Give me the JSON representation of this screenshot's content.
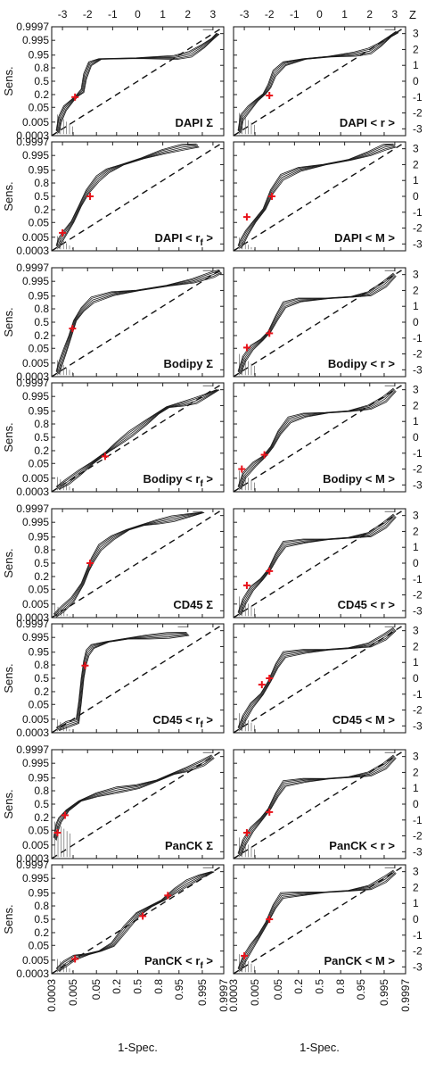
{
  "figure": {
    "z_label": "Z",
    "z_ticks": [
      "-3",
      "-2",
      "-1",
      "0",
      "1",
      "2",
      "3"
    ],
    "sens_label": "Sens.",
    "spec_label": "1-Spec.",
    "prob_ticks": [
      "0.0003",
      "0.005",
      "0.05",
      "0.2",
      "0.5",
      "0.8",
      "0.95",
      "0.995",
      "0.9997"
    ]
  },
  "chart_data": [
    {
      "type": "line",
      "marker": "DAPI",
      "stat": "Σ",
      "label_main": "DAPI ",
      "label_sub": "",
      "label_end": "Σ",
      "label_open": "",
      "xlim": [
        -3.43,
        3.43
      ],
      "ylim": [
        -3.43,
        3.43
      ],
      "scale": "probit",
      "reference": "dashed diagonal",
      "series": {
        "x": [
          -3.2,
          -3.1,
          -2.9,
          -2.6,
          -2.4,
          -2.2,
          -2.1,
          -1.9,
          -1.5,
          0,
          1.5,
          2.1,
          2.6,
          3.0,
          3.2
        ],
        "y": [
          -3.2,
          -2.4,
          -1.7,
          -1.2,
          -0.9,
          -0.6,
          0.3,
          1.1,
          1.4,
          1.45,
          1.5,
          1.7,
          2.2,
          2.7,
          3.0
        ]
      },
      "operating_points": [
        {
          "x": -2.5,
          "y": -1.0
        }
      ]
    },
    {
      "type": "line",
      "marker": "DAPI",
      "stat": "< r >",
      "label_main": "DAPI ",
      "label_sub": "",
      "label_end": "< r >",
      "label_open": "",
      "xlim": [
        -3.43,
        3.43
      ],
      "ylim": [
        -3.43,
        3.43
      ],
      "scale": "probit",
      "reference": "dashed diagonal",
      "series": {
        "x": [
          -3.2,
          -3.1,
          -2.8,
          -2.5,
          -2.2,
          -2.0,
          -1.8,
          -1.4,
          -0.6,
          0.4,
          1.4,
          2.0,
          2.4,
          2.8,
          3.1
        ],
        "y": [
          -3.2,
          -2.3,
          -1.7,
          -1.2,
          -0.8,
          -0.3,
          0.5,
          1.1,
          1.4,
          1.55,
          1.7,
          1.9,
          2.3,
          2.8,
          3.1
        ]
      },
      "operating_points": [
        {
          "x": -2.0,
          "y": -0.9
        }
      ]
    },
    {
      "type": "line",
      "marker": "DAPI",
      "stat": "< r_f >",
      "label_main": "DAPI < r",
      "label_sub": "f",
      "label_end": " >",
      "label_open": "",
      "xlim": [
        -3.43,
        3.43
      ],
      "ylim": [
        -3.43,
        3.43
      ],
      "scale": "probit",
      "reference": "dashed diagonal",
      "series": {
        "x": [
          -3.2,
          -3.1,
          -2.9,
          -2.6,
          -2.3,
          -2.0,
          -1.6,
          -1.2,
          -0.6,
          0.2,
          1.0,
          1.8,
          2.4
        ],
        "y": [
          -3.2,
          -2.8,
          -2.3,
          -1.6,
          -0.6,
          0.3,
          1.1,
          1.6,
          2.0,
          2.4,
          2.8,
          3.1,
          3.2
        ]
      },
      "operating_points": [
        {
          "x": -1.9,
          "y": 0.0
        },
        {
          "x": -3.0,
          "y": -2.3
        }
      ]
    },
    {
      "type": "line",
      "marker": "DAPI",
      "stat": "< M >",
      "label_main": "DAPI ",
      "label_sub": "",
      "label_end": "< M >",
      "label_open": "",
      "xlim": [
        -3.43,
        3.43
      ],
      "ylim": [
        -3.43,
        3.43
      ],
      "scale": "probit",
      "reference": "dashed diagonal",
      "series": {
        "x": [
          -3.2,
          -3.1,
          -2.9,
          -2.6,
          -2.2,
          -1.9,
          -1.5,
          -0.8,
          0.2,
          1.2,
          2.0,
          2.6,
          3.0
        ],
        "y": [
          -3.2,
          -2.9,
          -2.3,
          -1.6,
          -0.8,
          0.3,
          1.2,
          1.7,
          2.0,
          2.3,
          2.7,
          3.1,
          3.2
        ]
      },
      "operating_points": [
        {
          "x": -1.9,
          "y": 0.0
        },
        {
          "x": -2.9,
          "y": -1.3
        }
      ]
    },
    {
      "type": "line",
      "marker": "Bodipy",
      "stat": "Σ",
      "label_main": "Bodipy ",
      "label_sub": "",
      "label_end": "Σ",
      "label_open": "",
      "xlim": [
        -3.43,
        3.43
      ],
      "ylim": [
        -3.43,
        3.43
      ],
      "scale": "probit",
      "reference": "dashed diagonal",
      "series": {
        "x": [
          -3.2,
          -3.1,
          -2.9,
          -2.7,
          -2.5,
          -2.2,
          -1.8,
          -1.0,
          0.0,
          1.2,
          2.2,
          3.0,
          3.3
        ],
        "y": [
          -3.2,
          -2.7,
          -1.8,
          -0.9,
          0.1,
          0.8,
          1.4,
          1.8,
          2.0,
          2.3,
          2.6,
          3.0,
          3.2
        ]
      },
      "operating_points": [
        {
          "x": -2.6,
          "y": -0.4
        }
      ]
    },
    {
      "type": "line",
      "marker": "Bodipy",
      "stat": "< r >",
      "label_main": "Bodipy ",
      "label_sub": "",
      "label_end": "< r >",
      "label_open": "",
      "xlim": [
        -3.43,
        3.43
      ],
      "ylim": [
        -3.43,
        3.43
      ],
      "scale": "probit",
      "reference": "dashed diagonal",
      "series": {
        "x": [
          -3.2,
          -3.0,
          -2.7,
          -2.3,
          -2.0,
          -1.7,
          -1.4,
          -0.8,
          0.3,
          1.3,
          2.0,
          2.6,
          3.0
        ],
        "y": [
          -3.2,
          -2.3,
          -1.6,
          -1.1,
          -0.6,
          0.3,
          1.1,
          1.4,
          1.5,
          1.6,
          1.8,
          2.4,
          3.0
        ]
      },
      "operating_points": [
        {
          "x": -2.0,
          "y": -0.7
        },
        {
          "x": -2.9,
          "y": -1.6
        }
      ]
    },
    {
      "type": "line",
      "marker": "Bodipy",
      "stat": "< r_f >",
      "label_main": "Bodipy < r",
      "label_sub": "f",
      "label_end": " >",
      "label_open": "",
      "xlim": [
        -3.43,
        3.43
      ],
      "ylim": [
        -3.43,
        3.43
      ],
      "scale": "probit",
      "reference": "dashed diagonal",
      "series": {
        "x": [
          -3.2,
          -2.8,
          -2.3,
          -1.8,
          -1.2,
          -0.8,
          -0.3,
          0.3,
          0.8,
          1.2,
          1.8,
          2.3,
          2.7,
          3.2
        ],
        "y": [
          -3.2,
          -2.8,
          -2.2,
          -1.6,
          -0.9,
          -0.4,
          0.2,
          0.9,
          1.5,
          1.9,
          2.1,
          2.3,
          2.6,
          3.0
        ]
      },
      "operating_points": [
        {
          "x": -1.3,
          "y": -1.2
        }
      ]
    },
    {
      "type": "line",
      "marker": "Bodipy",
      "stat": "< M >",
      "label_main": "Bodipy ",
      "label_sub": "",
      "label_end": "< M >",
      "label_open": "",
      "xlim": [
        -3.43,
        3.43
      ],
      "ylim": [
        -3.43,
        3.43
      ],
      "scale": "probit",
      "reference": "dashed diagonal",
      "series": {
        "x": [
          -3.2,
          -3.0,
          -2.6,
          -2.2,
          -1.9,
          -1.6,
          -1.2,
          -0.6,
          0.3,
          1.2,
          2.0,
          2.6,
          3.0
        ],
        "y": [
          -3.2,
          -2.4,
          -1.7,
          -1.2,
          -0.6,
          0.3,
          1.1,
          1.4,
          1.55,
          1.65,
          1.9,
          2.4,
          3.0
        ]
      },
      "operating_points": [
        {
          "x": -2.2,
          "y": -1.1
        },
        {
          "x": -3.1,
          "y": -2.0
        }
      ]
    },
    {
      "type": "line",
      "marker": "CD45",
      "stat": "Σ",
      "label_main": "CD45 ",
      "label_sub": "",
      "label_end": "Σ",
      "label_open": "",
      "xlim": [
        -3.43,
        3.43
      ],
      "ylim": [
        -3.43,
        3.43
      ],
      "scale": "probit",
      "reference": "dashed diagonal",
      "series": {
        "x": [
          -3.3,
          -3.0,
          -2.6,
          -2.2,
          -2.0,
          -1.8,
          -1.5,
          -1.0,
          -0.4,
          0.2,
          0.8,
          1.4,
          2.0,
          2.6
        ],
        "y": [
          -3.3,
          -2.9,
          -2.3,
          -1.3,
          -0.5,
          0.2,
          1.0,
          1.6,
          2.1,
          2.4,
          2.6,
          2.8,
          3.0,
          3.2
        ]
      },
      "operating_points": [
        {
          "x": -1.9,
          "y": 0.0
        }
      ]
    },
    {
      "type": "line",
      "marker": "CD45",
      "stat": "< r >",
      "label_main": "CD45 ",
      "label_sub": "",
      "label_end": "< r >",
      "label_open": "",
      "xlim": [
        -3.43,
        3.43
      ],
      "ylim": [
        -3.43,
        3.43
      ],
      "scale": "probit",
      "reference": "dashed diagonal",
      "series": {
        "x": [
          -3.2,
          -3.0,
          -2.7,
          -2.3,
          -2.0,
          -1.7,
          -1.4,
          -0.6,
          0.3,
          1.2,
          2.0,
          2.6,
          3.0
        ],
        "y": [
          -3.2,
          -2.4,
          -1.6,
          -1.0,
          -0.4,
          0.5,
          1.2,
          1.4,
          1.5,
          1.6,
          1.8,
          2.4,
          3.0
        ]
      },
      "operating_points": [
        {
          "x": -2.0,
          "y": -0.5
        },
        {
          "x": -2.9,
          "y": -1.4
        }
      ]
    },
    {
      "type": "line",
      "marker": "CD45",
      "stat": "< r_f >",
      "label_main": "CD45 < r",
      "label_sub": "f",
      "label_end": " >",
      "label_open": "",
      "xlim": [
        -3.43,
        3.43
      ],
      "ylim": [
        -3.43,
        3.43
      ],
      "scale": "probit",
      "reference": "dashed diagonal",
      "series": {
        "x": [
          -3.2,
          -2.8,
          -2.4,
          -2.3,
          -2.2,
          -2.1,
          -2.0,
          -1.8,
          -1.2,
          -0.4,
          0.4,
          1.2,
          2.0
        ],
        "y": [
          -3.2,
          -2.9,
          -2.7,
          -1.5,
          0.0,
          1.0,
          1.6,
          2.0,
          2.3,
          2.5,
          2.6,
          2.7,
          2.8
        ]
      },
      "operating_points": [
        {
          "x": -2.1,
          "y": 0.8
        }
      ]
    },
    {
      "type": "line",
      "marker": "CD45",
      "stat": "< M >",
      "label_main": "CD45 ",
      "label_sub": "",
      "label_end": "< M >",
      "label_open": "",
      "xlim": [
        -3.43,
        3.43
      ],
      "ylim": [
        -3.43,
        3.43
      ],
      "scale": "probit",
      "reference": "dashed diagonal",
      "series": {
        "x": [
          -3.2,
          -3.0,
          -2.7,
          -2.3,
          -2.0,
          -1.7,
          -1.4,
          -0.6,
          0.3,
          1.2,
          2.0,
          2.6,
          3.0
        ],
        "y": [
          -3.2,
          -2.5,
          -1.7,
          -1.0,
          -0.2,
          0.8,
          1.5,
          1.7,
          1.8,
          1.9,
          2.1,
          2.6,
          3.1
        ]
      },
      "operating_points": [
        {
          "x": -2.3,
          "y": -0.4
        },
        {
          "x": -2.0,
          "y": 0.0
        }
      ]
    },
    {
      "type": "line",
      "marker": "PanCK",
      "stat": "Σ",
      "label_main": "PanCK ",
      "label_sub": "",
      "label_end": "Σ",
      "label_open": "",
      "xlim": [
        -3.43,
        3.43
      ],
      "ylim": [
        -3.43,
        3.43
      ],
      "scale": "probit",
      "reference": "dashed diagonal",
      "series": {
        "x": [
          -3.3,
          -3.2,
          -3.1,
          -2.8,
          -2.3,
          -1.6,
          -0.8,
          0.0,
          0.8,
          1.4,
          2.0,
          2.6,
          3.0
        ],
        "y": [
          -2.2,
          -1.4,
          -1.0,
          -0.4,
          0.2,
          0.6,
          0.9,
          1.1,
          1.5,
          1.9,
          2.2,
          2.6,
          3.0
        ]
      },
      "operating_points": [
        {
          "x": -3.2,
          "y": -1.8
        },
        {
          "x": -2.9,
          "y": -0.7
        }
      ]
    },
    {
      "type": "line",
      "marker": "PanCK",
      "stat": "< r >",
      "label_main": "PanCK ",
      "label_sub": "",
      "label_end": "< r >",
      "label_open": "",
      "xlim": [
        -3.43,
        3.43
      ],
      "ylim": [
        -3.43,
        3.43
      ],
      "scale": "probit",
      "reference": "dashed diagonal",
      "series": {
        "x": [
          -3.2,
          -3.0,
          -2.7,
          -2.3,
          -2.0,
          -1.7,
          -1.4,
          -0.6,
          0.3,
          1.2,
          2.0,
          2.6,
          3.0
        ],
        "y": [
          -3.2,
          -2.4,
          -1.6,
          -0.9,
          -0.3,
          0.6,
          1.3,
          1.5,
          1.6,
          1.7,
          1.9,
          2.4,
          3.0
        ]
      },
      "operating_points": [
        {
          "x": -2.0,
          "y": -0.5
        },
        {
          "x": -2.9,
          "y": -1.8
        }
      ]
    },
    {
      "type": "line",
      "marker": "PanCK",
      "stat": "< r_f >",
      "label_main": "PanCK < r",
      "label_sub": "f",
      "label_end": " >",
      "label_open": "",
      "xlim": [
        -3.43,
        3.43
      ],
      "ylim": [
        -3.43,
        3.43
      ],
      "scale": "probit",
      "reference": "dashed diagonal",
      "series": {
        "x": [
          -3.2,
          -2.9,
          -2.5,
          -2.0,
          -1.5,
          -1.0,
          -0.5,
          0.0,
          0.5,
          1.0,
          1.5,
          2.0,
          2.5,
          3.0
        ],
        "y": [
          -3.2,
          -2.8,
          -2.4,
          -2.2,
          -2.0,
          -1.6,
          -0.6,
          0.3,
          0.8,
          1.2,
          1.8,
          2.3,
          2.7,
          3.0
        ]
      },
      "operating_points": [
        {
          "x": -2.5,
          "y": -2.5
        },
        {
          "x": 0.2,
          "y": 0.2
        },
        {
          "x": 1.2,
          "y": 1.5
        }
      ]
    },
    {
      "type": "line",
      "marker": "PanCK",
      "stat": "< M >",
      "label_main": "PanCK ",
      "label_sub": "",
      "label_end": "< M >",
      "label_open": "",
      "xlim": [
        -3.43,
        3.43
      ],
      "ylim": [
        -3.43,
        3.43
      ],
      "scale": "probit",
      "reference": "dashed diagonal",
      "series": {
        "x": [
          -3.2,
          -3.0,
          -2.7,
          -2.4,
          -2.1,
          -1.8,
          -1.5,
          -0.8,
          0.2,
          1.2,
          2.0,
          2.6,
          3.0
        ],
        "y": [
          -3.2,
          -2.5,
          -1.7,
          -1.0,
          -0.2,
          0.8,
          1.5,
          1.6,
          1.7,
          1.8,
          2.0,
          2.5,
          3.0
        ]
      },
      "operating_points": [
        {
          "x": -2.0,
          "y": 0.0
        },
        {
          "x": -3.0,
          "y": -2.3
        }
      ]
    }
  ]
}
